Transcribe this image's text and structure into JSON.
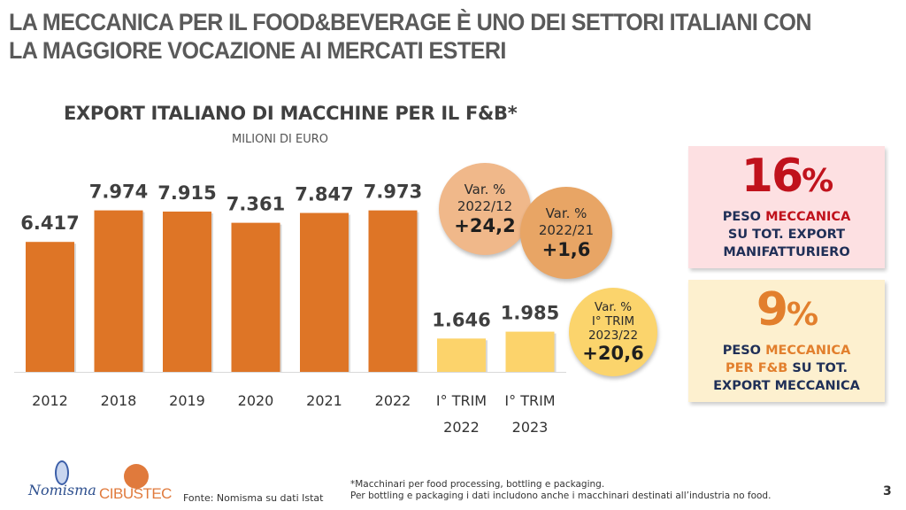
{
  "slide": {
    "title_line1": "LA MECCANICA PER IL FOOD&BEVERAGE È UNO DEI SETTORI ITALIANI CON",
    "title_line2": "LA MAGGIORE VOCAZIONE AI MERCATI ESTERI",
    "page_number": "3"
  },
  "chart_data": {
    "type": "bar",
    "title": "EXPORT ITALIANO DI MACCHINE PER IL F&B*",
    "subtitle": "MILIONI DI EURO",
    "xlabel": "",
    "ylabel": "",
    "categories": [
      "2012",
      "2018",
      "2019",
      "2020",
      "2021",
      "2022",
      "I° TRIM 2022",
      "I° TRIM 2023"
    ],
    "category_lines": [
      [
        "2012"
      ],
      [
        "2018"
      ],
      [
        "2019"
      ],
      [
        "2020"
      ],
      [
        "2021"
      ],
      [
        "2022"
      ],
      [
        "I° TRIM",
        "2022"
      ],
      [
        "I° TRIM",
        "2023"
      ]
    ],
    "values": [
      6417,
      7974,
      7915,
      7361,
      7847,
      7973,
      1646,
      1985
    ],
    "value_labels": [
      "6.417",
      "7.974",
      "7.915",
      "7.361",
      "7.847",
      "7.973",
      "1.646",
      "1.985"
    ],
    "bar_colors": [
      "#de7526",
      "#de7526",
      "#de7526",
      "#de7526",
      "#de7526",
      "#de7526",
      "#fcd36b",
      "#fcd36b"
    ],
    "ylim": [
      0,
      8000
    ],
    "grid": false,
    "legend": "none"
  },
  "bubbles": [
    {
      "label_lines": [
        "Var. %",
        "2022/12"
      ],
      "value": "+24,2",
      "color": "#f0b88a"
    },
    {
      "label_lines": [
        "Var. %",
        "2022/21"
      ],
      "value": "+1,6",
      "color": "#e8a565"
    },
    {
      "label_lines": [
        "Var. %",
        "I° TRIM",
        "2023/22"
      ],
      "value": "+20,6",
      "color": "#fbd46c"
    }
  ],
  "cards": [
    {
      "value": "16",
      "unit": "%",
      "desc_a": "PESO ",
      "desc_hl": "MECCANICA",
      "desc_b": "SU TOT. EXPORT",
      "desc_c": "MANIFATTURIERO",
      "accent": "#c0121c",
      "bg": "#fde0e2"
    },
    {
      "value": "9",
      "unit": "%",
      "desc_a": "PESO ",
      "desc_hl": "MECCANICA",
      "desc_hl2": "PER F&B",
      "desc_b": " SU TOT.",
      "desc_c": "EXPORT MECCANICA",
      "accent": "#e27f2d",
      "bg": "#fdf0cf"
    }
  ],
  "footer": {
    "logo1": "Nomisma",
    "logo2": "CIBUSTEC",
    "source": "Fonte: Nomisma su dati Istat",
    "note_line1": "*Macchinari per food processing, bottling e packaging.",
    "note_line2": "Per bottling e packaging i dati includono anche i macchinari destinati all’industria no food."
  }
}
